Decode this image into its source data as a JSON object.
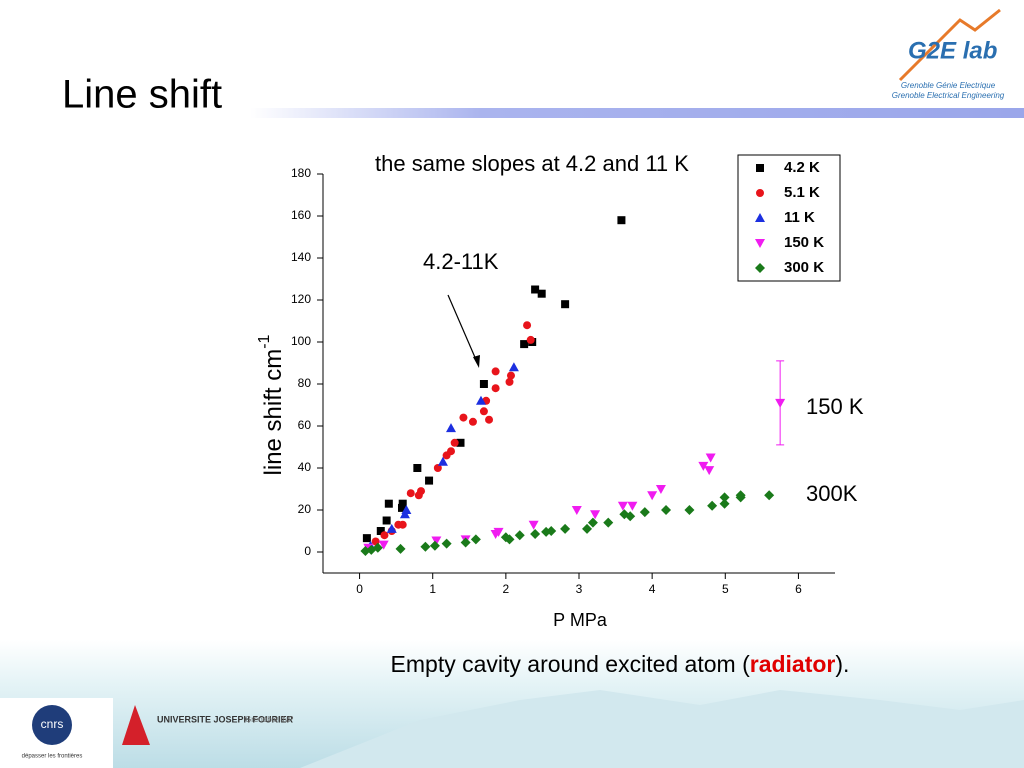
{
  "slide": {
    "title": "Line shift",
    "logo": {
      "name": "G2E lab",
      "line1": "Grenoble Génie Electrique",
      "line2": "Grenoble Electrical Engineering"
    },
    "caption": {
      "before": "Empty cavity around excited atom (",
      "highlight": "radiator",
      "after": ")."
    },
    "footer": {
      "cnrs": "cnrs",
      "cnrs_motto": "dépasser les frontières",
      "ujf": "UNIVERSITE JOSEPH FOURIER",
      "inp": "Grenoble INP"
    }
  },
  "chart_data": {
    "type": "scatter",
    "title": "the same slopes at 4.2 and 11 K",
    "xlabel": "P MPa",
    "ylabel": "line shift cm",
    "ylabel_sup": "-1",
    "annotations": [
      "4.2-11K",
      "150 K",
      "300K"
    ],
    "xlim": [
      -0.5,
      6.5
    ],
    "xticks": [
      0,
      1,
      2,
      3,
      4,
      5,
      6
    ],
    "ylim": [
      -10,
      180
    ],
    "yticks": [
      0,
      20,
      40,
      60,
      80,
      100,
      120,
      140,
      160,
      180
    ],
    "legend": "upper right",
    "series": [
      {
        "name": "4.2 K",
        "color": "#000000",
        "marker": "square",
        "x": [
          0.1,
          0.29,
          0.37,
          0.4,
          0.59,
          0.58,
          0.79,
          0.95,
          1.38,
          1.7,
          2.25,
          2.36,
          2.4,
          2.49,
          2.81,
          3.58
        ],
        "values": [
          6.6,
          10,
          15,
          23,
          23,
          21,
          40,
          34,
          52,
          80,
          99,
          100,
          125,
          123,
          118,
          158
        ]
      },
      {
        "name": "5.1 K",
        "color": "#e8141b",
        "marker": "circle",
        "x": [
          0.22,
          0.34,
          0.44,
          0.53,
          0.59,
          0.7,
          0.81,
          0.84,
          1.07,
          1.19,
          1.25,
          1.3,
          1.42,
          1.55,
          1.7,
          1.73,
          1.77,
          1.86,
          1.86,
          2.05,
          2.07,
          2.29,
          2.34
        ],
        "values": [
          5,
          8,
          10,
          13,
          13,
          28,
          27,
          29,
          40,
          46,
          48,
          52,
          64,
          62,
          67,
          72,
          63,
          78,
          86,
          81,
          84,
          108,
          101
        ]
      },
      {
        "name": "11 K",
        "color": "#1c2fe0",
        "marker": "triangle-up",
        "x": [
          0.15,
          0.44,
          0.62,
          0.64,
          1.14,
          1.25,
          1.66,
          2.11
        ],
        "values": [
          3,
          11,
          18,
          20,
          43,
          59,
          72,
          88
        ]
      },
      {
        "name": "150 K",
        "color": "#f01cf0",
        "marker": "triangle-down",
        "x": [
          0.12,
          0.33,
          1.05,
          1.45,
          1.86,
          1.9,
          2.38,
          2.97,
          3.22,
          3.6,
          3.73,
          4.0,
          4.12,
          4.7,
          4.78,
          4.8,
          5.75
        ],
        "values": [
          2,
          3.5,
          5.5,
          6,
          8.6,
          9.6,
          13,
          20,
          18,
          22,
          22,
          27,
          30,
          41,
          39,
          45,
          71
        ],
        "errors": [
          null,
          null,
          null,
          null,
          null,
          null,
          null,
          null,
          null,
          null,
          null,
          null,
          null,
          null,
          null,
          null,
          20
        ]
      },
      {
        "name": "300 K",
        "color": "#1a7a1a",
        "marker": "diamond",
        "x": [
          0.08,
          0.16,
          0.25,
          0.56,
          0.9,
          1.03,
          1.19,
          1.45,
          1.59,
          2.0,
          2.05,
          2.19,
          2.4,
          2.55,
          2.62,
          2.81,
          3.11,
          3.19,
          3.4,
          3.62,
          3.7,
          3.9,
          4.19,
          4.51,
          4.82,
          4.99,
          4.99,
          5.21,
          5.21,
          5.6
        ],
        "values": [
          0.5,
          1,
          2,
          1.5,
          2.5,
          3,
          4,
          4.5,
          6,
          7,
          6,
          8,
          8.6,
          9.6,
          10,
          11,
          11,
          14,
          14,
          18,
          17,
          19,
          20,
          20,
          22,
          26,
          23,
          26,
          27,
          27
        ]
      }
    ]
  }
}
